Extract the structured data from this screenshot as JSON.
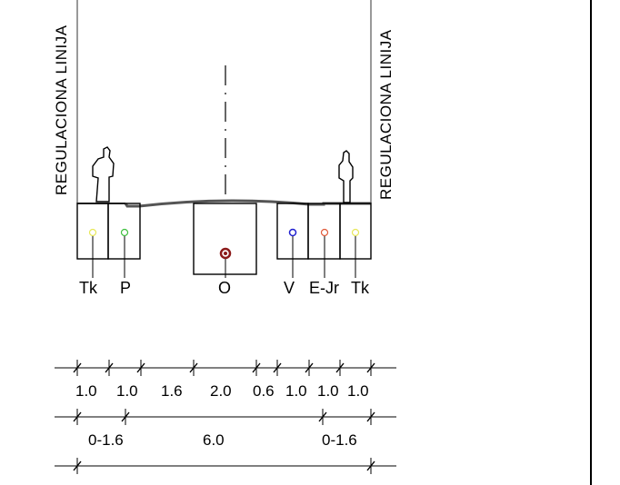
{
  "regulation_line_label": "REGULACIONA LINIJA",
  "utilities": [
    {
      "id": "tk-left",
      "label": "Tk",
      "color": "#e8e85a"
    },
    {
      "id": "p",
      "label": "P",
      "color": "#3fbf3f"
    },
    {
      "id": "o",
      "label": "O",
      "color": "#8b1a1a"
    },
    {
      "id": "v",
      "label": "V",
      "color": "#2020d0"
    },
    {
      "id": "e-jr",
      "label": "E-Jr",
      "color": "#e05a3a"
    },
    {
      "id": "tk-right",
      "label": "Tk",
      "color": "#e8e85a"
    }
  ],
  "dimensions": {
    "row1": [
      "1.0",
      "1.0",
      "1.6",
      "2.0",
      "0.6",
      "1.0",
      "1.0",
      "1.0"
    ],
    "row2": [
      "0-1.6",
      "6.0",
      "0-1.6"
    ]
  }
}
